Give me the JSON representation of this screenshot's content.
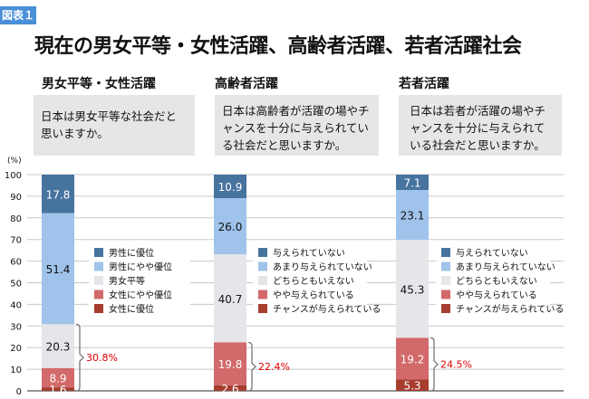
{
  "badge": "図表１",
  "title": "現在の男女平等・女性活躍、高齢者活躍、若者活躍社会",
  "colors": [
    "#47739f",
    "#9fc3ea",
    "#e6e5ea",
    "#d2696a",
    "#a63d2f"
  ],
  "chart_data": [
    {
      "type": "stacked-bar",
      "subtitle": "男女平等・女性活躍",
      "question": "日本は男女平等な社会だと思いますか。",
      "ylabel": "(%)",
      "ylim": [
        0,
        100
      ],
      "yticks": [
        0,
        10,
        20,
        30,
        40,
        50,
        60,
        70,
        80,
        90,
        100
      ],
      "grid": true,
      "legend_placement": "right",
      "series": [
        {
          "name": "男性に優位",
          "value": 17.8
        },
        {
          "name": "男性にやや優位",
          "value": 51.4
        },
        {
          "name": "男女平等",
          "value": 20.3
        },
        {
          "name": "女性にやや優位",
          "value": 8.9
        },
        {
          "name": "女性に優位",
          "value": 1.6
        }
      ],
      "bracket_label": "30.8%"
    },
    {
      "type": "stacked-bar",
      "subtitle": "高齢者活躍",
      "question": "日本は高齢者が活躍の場やチャンスを十分に与えられている社会だと思いますか。",
      "ylim": [
        0,
        100
      ],
      "grid": true,
      "legend_placement": "right",
      "series": [
        {
          "name": "与えられていない",
          "value": 10.9
        },
        {
          "name": "あまり与えられていない",
          "value": 26.0
        },
        {
          "name": "どちらともいえない",
          "value": 40.7
        },
        {
          "name": "やや与えられている",
          "value": 19.8
        },
        {
          "name": "チャンスが与えられている",
          "value": 2.6
        }
      ],
      "bracket_label": "22.4%"
    },
    {
      "type": "stacked-bar",
      "subtitle": "若者活躍",
      "question": "日本は若者が活躍の場やチャンスを十分に与えられている社会だと思いますか。",
      "ylim": [
        0,
        100
      ],
      "grid": true,
      "legend_placement": "right",
      "series": [
        {
          "name": "与えられていない",
          "value": 7.1
        },
        {
          "name": "あまり与えられていない",
          "value": 23.1
        },
        {
          "name": "どちらともいえない",
          "value": 45.3
        },
        {
          "name": "やや与えられている",
          "value": 19.2
        },
        {
          "name": "チャンスが与えられている",
          "value": 5.3
        }
      ],
      "bracket_label": "24.5%"
    }
  ]
}
